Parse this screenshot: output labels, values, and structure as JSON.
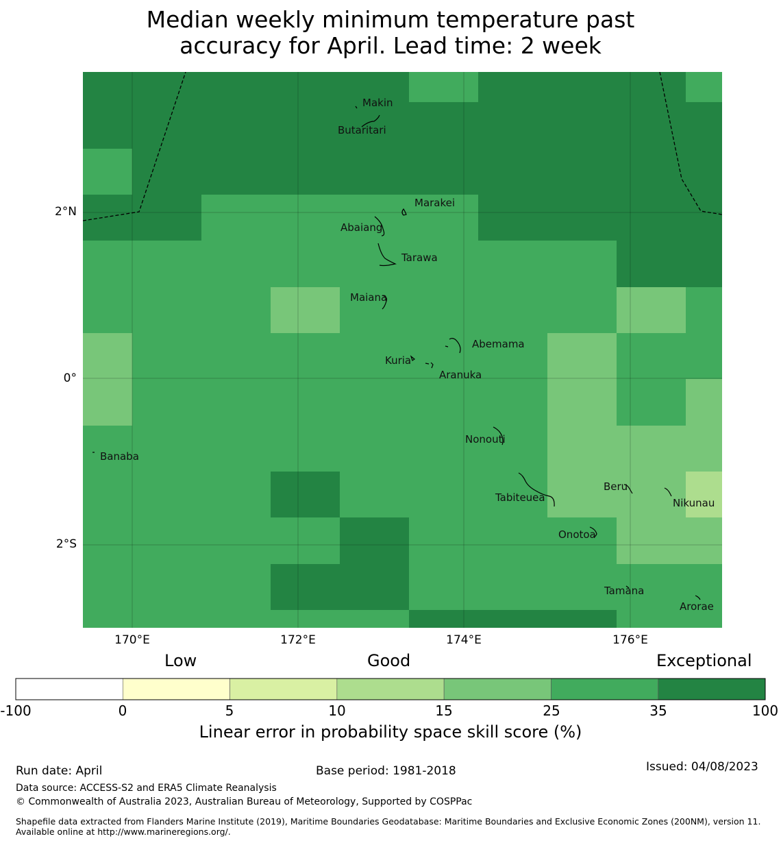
{
  "title": {
    "line1": "Median weekly minimum temperature past",
    "line2": "accuracy for April. Lead time: 2 week"
  },
  "map": {
    "lat_ticks": [
      "2°N",
      "0°",
      "2°S"
    ],
    "lon_ticks": [
      "170°E",
      "172°E",
      "174°E",
      "176°E"
    ],
    "islands": [
      {
        "name": "Makin"
      },
      {
        "name": "Butaritari"
      },
      {
        "name": "Marakei"
      },
      {
        "name": "Abaiang"
      },
      {
        "name": "Tarawa"
      },
      {
        "name": "Maiana"
      },
      {
        "name": "Abemama"
      },
      {
        "name": "Kuria"
      },
      {
        "name": "Aranuka"
      },
      {
        "name": "Nonouti"
      },
      {
        "name": "Banaba"
      },
      {
        "name": "Tabiteuea"
      },
      {
        "name": "Beru"
      },
      {
        "name": "Nikunau"
      },
      {
        "name": "Onotoa"
      },
      {
        "name": "Tamana"
      },
      {
        "name": "Arorae"
      }
    ],
    "grid_skill_classes": [
      [
        6,
        6,
        6,
        6,
        6,
        5,
        6,
        6,
        6,
        5,
        5
      ],
      [
        6,
        6,
        6,
        6,
        6,
        6,
        6,
        6,
        6,
        6,
        6
      ],
      [
        5,
        6,
        6,
        6,
        6,
        6,
        6,
        6,
        6,
        6,
        6
      ],
      [
        6,
        6,
        5,
        5,
        5,
        5,
        6,
        6,
        6,
        6,
        6
      ],
      [
        5,
        5,
        5,
        5,
        5,
        5,
        5,
        5,
        6,
        6,
        6
      ],
      [
        5,
        5,
        5,
        4,
        5,
        5,
        5,
        5,
        4,
        5,
        5
      ],
      [
        4,
        5,
        5,
        5,
        5,
        5,
        5,
        4,
        5,
        5,
        5
      ],
      [
        4,
        5,
        5,
        5,
        5,
        5,
        5,
        4,
        5,
        4,
        4
      ],
      [
        5,
        5,
        5,
        5,
        5,
        5,
        5,
        4,
        4,
        4,
        4
      ],
      [
        5,
        5,
        5,
        6,
        5,
        5,
        5,
        4,
        4,
        3,
        4
      ],
      [
        5,
        5,
        5,
        5,
        6,
        5,
        5,
        5,
        4,
        4,
        4
      ],
      [
        5,
        5,
        5,
        6,
        6,
        5,
        5,
        5,
        5,
        5,
        4
      ],
      [
        5,
        5,
        5,
        5,
        5,
        6,
        6,
        6,
        5,
        5,
        5
      ]
    ]
  },
  "legend": {
    "categories": [
      "Low",
      "Good",
      "Exceptional"
    ],
    "ticks": [
      "-100",
      "0",
      "5",
      "10",
      "15",
      "25",
      "35",
      "100"
    ],
    "colors": [
      "#ffffff",
      "#ffffcc",
      "#d9f0a3",
      "#addd8e",
      "#78c679",
      "#41ab5d",
      "#238443"
    ],
    "label": "Linear error in probability space skill score (%)"
  },
  "footer": {
    "run_date": "Run date: April",
    "base_period": "Base period: 1981-2018",
    "issued": "Issued: 04/08/2023",
    "data_source": "Data source: ACCESS-S2 and ERA5 Climate Reanalysis",
    "copyright": "© Commonwealth of Australia 2023, Australian Bureau of Meteorology, Supported by COSPPac",
    "shapefile": "Shapefile data extracted from Flanders Marine Institute (2019), Maritime Boundaries Geodatabase: Maritime Boundaries and Exclusive Economic Zones (200NM), version 11. Available online at http://www.marineregions.org/."
  }
}
